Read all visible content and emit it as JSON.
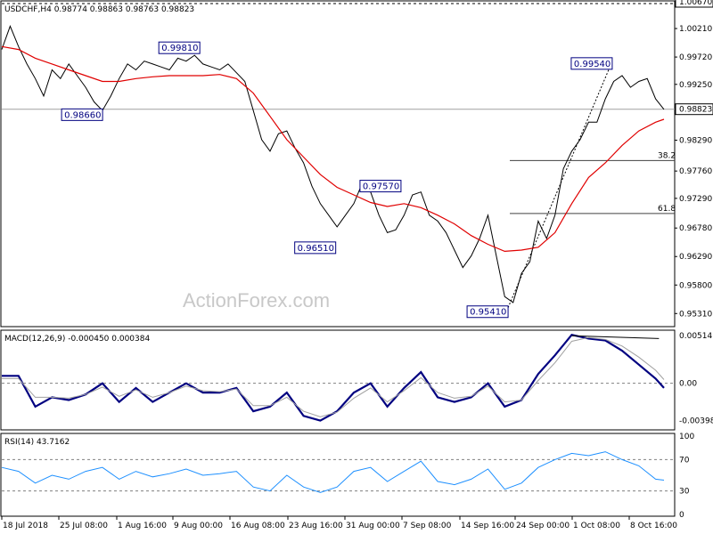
{
  "chart_data": [
    {
      "type": "line",
      "title": "USDCHF,H4",
      "ohlc_header": "0.98774 0.98863 0.98763 0.98823",
      "ylim": [
        0.951,
        1.0067
      ],
      "y_ticks": [
        "1.00670",
        "1.00210",
        "0.99720",
        "0.99250",
        "0.98823",
        "0.98290",
        "0.97760",
        "0.97290",
        "0.96780",
        "0.96290",
        "0.95800",
        "0.95310"
      ],
      "current_price": 0.98823,
      "current_price_label": "0.98823",
      "top_label": "1.00670",
      "annotations": [
        {
          "text": "0.99810",
          "price": 0.9981,
          "bar": 116
        },
        {
          "text": "0.98660",
          "price": 0.9866,
          "bar": 58
        },
        {
          "text": "0.97570",
          "price": 0.9757,
          "bar": 236
        },
        {
          "text": "0.96510",
          "price": 0.9651,
          "bar": 196
        },
        {
          "text": "0.95410",
          "price": 0.9541,
          "bar": 302
        },
        {
          "text": "0.99540",
          "price": 0.9954,
          "bar": 362
        }
      ],
      "fib_levels": [
        {
          "label": "38.2",
          "price": 0.9794
        },
        {
          "label": "61.8",
          "price": 0.9703
        }
      ],
      "x_tick_labels": [
        "18 Jul 2018",
        "25 Jul 08:00",
        "1 Aug 16:00",
        "9 Aug 00:00",
        "16 Aug 08:00",
        "23 Aug 16:00",
        "31 Aug 00:00",
        "7 Sep 08:00",
        "14 Sep 16:00",
        "24 Sep 00:00",
        "1 Oct 08:00",
        "8 Oct 16:00"
      ],
      "series": [
        {
          "role": "price",
          "color": "#000000",
          "x": [
            0,
            5,
            10,
            15,
            20,
            25,
            30,
            35,
            40,
            45,
            50,
            55,
            60,
            65,
            70,
            75,
            80,
            85,
            90,
            95,
            100,
            105,
            110,
            115,
            120,
            125,
            130,
            135,
            140,
            145,
            150,
            155,
            160,
            165,
            170,
            175,
            180,
            185,
            190,
            195,
            200,
            205,
            210,
            215,
            220,
            225,
            230,
            235,
            240,
            245,
            250,
            255,
            260,
            265,
            270,
            275,
            280,
            285,
            290,
            295,
            300,
            305,
            310,
            315,
            320,
            325,
            330,
            335,
            340,
            345,
            350,
            355,
            360,
            365,
            370,
            375,
            380,
            385,
            390,
            395
          ],
          "values": [
            0.9985,
            1.0025,
            0.999,
            0.996,
            0.9935,
            0.9905,
            0.995,
            0.9935,
            0.996,
            0.994,
            0.992,
            0.9895,
            0.988,
            0.9905,
            0.9935,
            0.996,
            0.995,
            0.9965,
            0.996,
            0.9955,
            0.995,
            0.997,
            0.9965,
            0.9975,
            0.996,
            0.9955,
            0.995,
            0.996,
            0.9945,
            0.993,
            0.988,
            0.983,
            0.981,
            0.984,
            0.9845,
            0.9815,
            0.979,
            0.975,
            0.972,
            0.97,
            0.968,
            0.97,
            0.972,
            0.9755,
            0.974,
            0.97,
            0.967,
            0.9675,
            0.97,
            0.9735,
            0.974,
            0.97,
            0.969,
            0.967,
            0.964,
            0.961,
            0.963,
            0.966,
            0.97,
            0.963,
            0.956,
            0.955,
            0.96,
            0.962,
            0.969,
            0.966,
            0.97,
            0.978,
            0.981,
            0.983,
            0.986,
            0.986,
            0.99,
            0.993,
            0.994,
            0.992,
            0.993,
            0.9935,
            0.99,
            0.9882
          ]
        },
        {
          "role": "moving-average",
          "color": "#e00000",
          "x": [
            0,
            10,
            20,
            30,
            40,
            50,
            60,
            70,
            80,
            90,
            100,
            110,
            120,
            130,
            140,
            150,
            160,
            170,
            180,
            190,
            200,
            210,
            220,
            230,
            240,
            250,
            260,
            270,
            280,
            290,
            300,
            310,
            320,
            330,
            340,
            350,
            360,
            370,
            380,
            390,
            395
          ],
          "values": [
            0.999,
            0.9985,
            0.997,
            0.996,
            0.995,
            0.994,
            0.993,
            0.993,
            0.9935,
            0.9938,
            0.994,
            0.994,
            0.994,
            0.9942,
            0.9935,
            0.991,
            0.987,
            0.983,
            0.98,
            0.977,
            0.9748,
            0.9735,
            0.9722,
            0.9715,
            0.972,
            0.9713,
            0.97,
            0.9685,
            0.9665,
            0.965,
            0.9638,
            0.964,
            0.9645,
            0.967,
            0.972,
            0.9765,
            0.979,
            0.982,
            0.9845,
            0.986,
            0.9865
          ]
        }
      ]
    },
    {
      "type": "line",
      "title": "MACD(12,26,9) -0.000450 0.000384",
      "ylim": [
        -0.0049,
        0.0056
      ],
      "y_ticks": [
        "0.005141",
        "0.00",
        "-0.003982"
      ],
      "series": [
        {
          "role": "macd",
          "color": "#000080",
          "x": [
            0,
            10,
            20,
            30,
            40,
            50,
            60,
            70,
            80,
            90,
            100,
            110,
            120,
            130,
            140,
            150,
            160,
            170,
            180,
            190,
            200,
            210,
            220,
            230,
            240,
            250,
            260,
            270,
            280,
            290,
            300,
            310,
            320,
            330,
            340,
            350,
            360,
            370,
            380,
            390,
            395
          ],
          "values": [
            0.0008,
            0.0008,
            -0.0025,
            -0.0015,
            -0.0018,
            -0.0012,
            0.0,
            -0.002,
            -0.0005,
            -0.002,
            -0.001,
            0.0,
            -0.001,
            -0.001,
            -0.0005,
            -0.003,
            -0.0025,
            -0.001,
            -0.0035,
            -0.004,
            -0.003,
            -0.001,
            0.0,
            -0.0025,
            -0.0005,
            0.0012,
            -0.0015,
            -0.002,
            -0.0015,
            0.0,
            -0.0025,
            -0.0018,
            0.001,
            0.003,
            0.0052,
            0.0048,
            0.0046,
            0.0035,
            0.002,
            0.0005,
            -0.0005
          ]
        },
        {
          "role": "signal",
          "color": "#a0a0a0",
          "x": [
            0,
            10,
            20,
            30,
            40,
            50,
            60,
            70,
            80,
            90,
            100,
            110,
            120,
            130,
            140,
            150,
            160,
            170,
            180,
            190,
            200,
            210,
            220,
            230,
            240,
            250,
            260,
            270,
            280,
            290,
            300,
            310,
            320,
            330,
            340,
            350,
            360,
            370,
            380,
            390,
            395
          ],
          "values": [
            0.0005,
            0.0005,
            -0.0015,
            -0.0015,
            -0.0016,
            -0.0012,
            -0.0004,
            -0.0014,
            -0.0007,
            -0.0015,
            -0.001,
            -0.0003,
            -0.0008,
            -0.0009,
            -0.0006,
            -0.0024,
            -0.0024,
            -0.0015,
            -0.003,
            -0.0036,
            -0.0031,
            -0.0016,
            -0.0005,
            -0.002,
            -0.0008,
            0.0006,
            -0.001,
            -0.0016,
            -0.0014,
            -0.0003,
            -0.002,
            -0.0018,
            0.0003,
            0.0022,
            0.0045,
            0.0049,
            0.0047,
            0.004,
            0.0028,
            0.0014,
            0.0004
          ]
        }
      ],
      "trend_line": {
        "from": [
          340,
          0.0051
        ],
        "to": [
          392,
          0.0048
        ]
      }
    },
    {
      "type": "line",
      "title": "RSI(14) 43.7162",
      "ylim": [
        0,
        100
      ],
      "y_ticks": [
        "100",
        "70",
        "30",
        "0"
      ],
      "levels": [
        70,
        30
      ],
      "series": [
        {
          "role": "rsi",
          "color": "#1e90ff",
          "x": [
            0,
            10,
            20,
            30,
            40,
            50,
            60,
            70,
            80,
            90,
            100,
            110,
            120,
            130,
            140,
            150,
            160,
            170,
            180,
            190,
            200,
            210,
            220,
            230,
            240,
            250,
            260,
            270,
            280,
            290,
            300,
            310,
            320,
            330,
            340,
            350,
            360,
            370,
            380,
            390,
            395
          ],
          "values": [
            60,
            55,
            40,
            50,
            45,
            55,
            60,
            45,
            55,
            48,
            52,
            58,
            50,
            52,
            55,
            35,
            30,
            50,
            35,
            28,
            35,
            55,
            60,
            42,
            55,
            68,
            42,
            38,
            45,
            58,
            32,
            40,
            60,
            70,
            78,
            75,
            80,
            70,
            62,
            45,
            43.7
          ]
        }
      ]
    }
  ],
  "watermark": "ActionForex.com",
  "colors": {
    "border": "#000000",
    "price_line": "#000000",
    "ma": "#e00000",
    "macd": "#000080",
    "rsi": "#1e90ff",
    "level": "#a0a0a0",
    "fib": "#404040",
    "label_box": "#000080"
  }
}
